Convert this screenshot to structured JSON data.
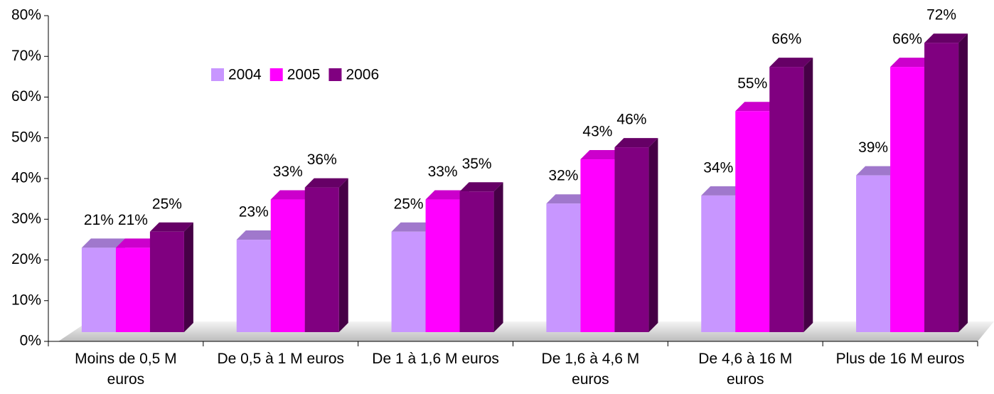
{
  "chart_data": {
    "type": "bar3d",
    "categories": [
      "Moins de 0,5 M euros",
      "De 0,5 à 1 M euros",
      "De 1 à 1,6 M euros",
      "De 1,6 à 4,6 M euros",
      "De 4,6 à 16 M euros",
      "Plus de 16 M euros"
    ],
    "series": [
      {
        "name": "2004",
        "color": "#c896ff",
        "values": [
          21,
          23,
          25,
          32,
          34,
          39
        ],
        "value_labels": [
          "21%",
          "23%",
          "25%",
          "32%",
          "34%",
          "39%"
        ]
      },
      {
        "name": "2005",
        "color": "#ff00ff",
        "values": [
          21,
          33,
          33,
          43,
          55,
          66
        ],
        "value_labels": [
          "21%",
          "33%",
          "33%",
          "43%",
          "55%",
          "66%"
        ]
      },
      {
        "name": "2006",
        "color": "#800080",
        "values": [
          25,
          36,
          35,
          46,
          66,
          72
        ],
        "value_labels": [
          "25%",
          "36%",
          "35%",
          "46%",
          "66%",
          "72%"
        ]
      }
    ],
    "ylim": [
      0,
      80
    ],
    "yticks": [
      {
        "value": 0,
        "label": "0%"
      },
      {
        "value": 10,
        "label": "10%"
      },
      {
        "value": 20,
        "label": "20%"
      },
      {
        "value": 30,
        "label": "30%"
      },
      {
        "value": 40,
        "label": "40%"
      },
      {
        "value": 50,
        "label": "50%"
      },
      {
        "value": 60,
        "label": "60%"
      },
      {
        "value": 70,
        "label": "70%"
      },
      {
        "value": 80,
        "label": "80%"
      }
    ],
    "legend": "upper left"
  }
}
